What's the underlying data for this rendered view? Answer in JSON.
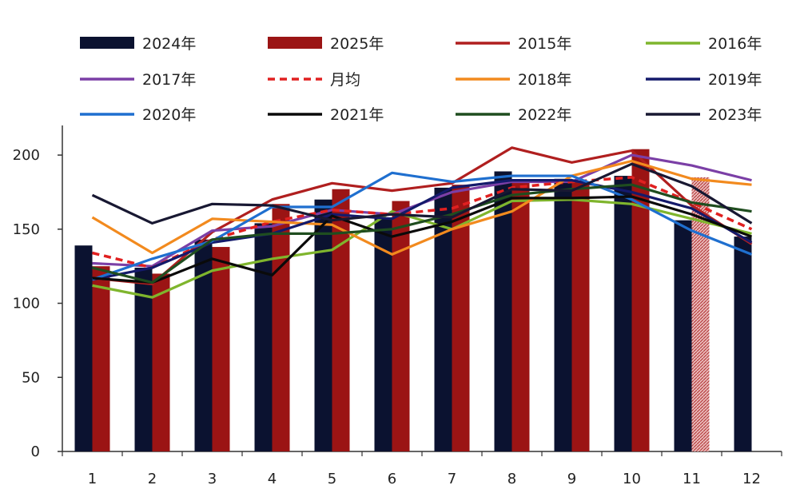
{
  "chart_data": {
    "type": "bar",
    "categories": [
      "1",
      "2",
      "3",
      "4",
      "5",
      "6",
      "7",
      "8",
      "9",
      "10",
      "11",
      "12"
    ],
    "ylim": [
      0,
      220
    ],
    "yticks": [
      0,
      50,
      100,
      150,
      200
    ],
    "bar_series": [
      {
        "name": "2024年",
        "color": "#0b1230",
        "values": [
          139,
          124,
          143,
          154,
          170,
          158,
          178,
          189,
          184,
          186,
          156,
          145
        ]
      },
      {
        "name": "2025年",
        "color": "#9b1414",
        "values": [
          125,
          120,
          138,
          167,
          177,
          169,
          180,
          183,
          182,
          204,
          185,
          null
        ]
      }
    ],
    "line_series": [
      {
        "name": "2015年",
        "color": "#b01f1f",
        "dashed": false,
        "values": [
          117,
          113,
          148,
          170,
          181,
          176,
          181,
          205,
          195,
          203,
          166,
          140
        ]
      },
      {
        "name": "2016年",
        "color": "#7fb52d",
        "dashed": false,
        "values": [
          112,
          104,
          122,
          130,
          136,
          162,
          150,
          169,
          170,
          167,
          157,
          147
        ]
      },
      {
        "name": "2017年",
        "color": "#7b3fa6",
        "dashed": false,
        "values": [
          127,
          125,
          149,
          152,
          163,
          160,
          175,
          182,
          182,
          200,
          193,
          183
        ]
      },
      {
        "name": "月均",
        "color": "#e02020",
        "dashed": true,
        "values": [
          134,
          124,
          143,
          155,
          163,
          160,
          164,
          178,
          182,
          185,
          168,
          150
        ]
      },
      {
        "name": "2018年",
        "color": "#f28a1e",
        "dashed": false,
        "values": [
          158,
          134,
          157,
          155,
          153,
          133,
          150,
          162,
          186,
          196,
          184,
          180
        ]
      },
      {
        "name": "2019年",
        "color": "#141a6b",
        "dashed": false,
        "values": [
          116,
          124,
          141,
          147,
          160,
          157,
          178,
          183,
          183,
          175,
          164,
          141
        ]
      },
      {
        "name": "2020年",
        "color": "#1f6fcf",
        "dashed": false,
        "values": [
          116,
          130,
          142,
          165,
          165,
          188,
          182,
          186,
          186,
          170,
          149,
          133
        ]
      },
      {
        "name": "2021年",
        "color": "#0a0a0a",
        "dashed": false,
        "values": [
          117,
          114,
          130,
          119,
          159,
          145,
          155,
          171,
          171,
          172,
          160,
          145
        ]
      },
      {
        "name": "2022年",
        "color": "#1f4d1f",
        "dashed": false,
        "values": [
          124,
          114,
          143,
          147,
          147,
          150,
          160,
          173,
          177,
          180,
          168,
          162
        ]
      },
      {
        "name": "2023年",
        "color": "#181832",
        "dashed": false,
        "values": [
          173,
          154,
          167,
          166,
          156,
          160,
          158,
          177,
          176,
          194,
          179,
          154
        ]
      }
    ],
    "legend": {
      "rows": [
        [
          "2024年",
          "2025年",
          "2015年",
          "2016年"
        ],
        [
          "2017年",
          "月均",
          "2018年",
          "2019年"
        ],
        [
          "2020年",
          "2021年",
          "2022年",
          "2023年"
        ]
      ]
    }
  }
}
